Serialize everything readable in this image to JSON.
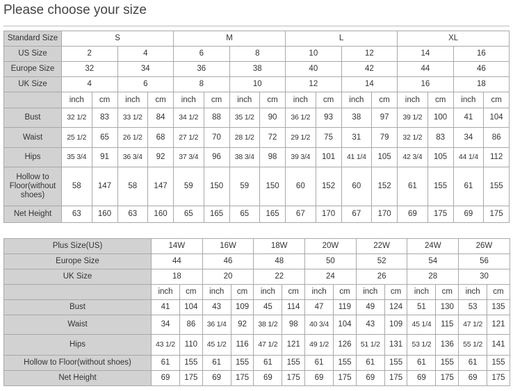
{
  "title": "Please choose your size",
  "standard_table": {
    "header": {
      "label": "Standard Size",
      "groups": [
        "S",
        "M",
        "L",
        "XL"
      ]
    },
    "size_rows": [
      {
        "label": "US Size",
        "values": [
          "2",
          "4",
          "6",
          "8",
          "10",
          "12",
          "14",
          "16"
        ]
      },
      {
        "label": "Europe Size",
        "values": [
          "32",
          "34",
          "36",
          "38",
          "40",
          "42",
          "44",
          "46"
        ]
      },
      {
        "label": "UK Size",
        "values": [
          "4",
          "6",
          "8",
          "10",
          "12",
          "14",
          "16",
          "18"
        ]
      }
    ],
    "units": [
      "inch",
      "cm"
    ],
    "measure_rows": [
      {
        "label": "Bust",
        "values": [
          "32 1/2",
          "83",
          "33 1/2",
          "84",
          "34 1/2",
          "88",
          "35 1/2",
          "90",
          "36 1/2",
          "93",
          "38",
          "97",
          "39 1/2",
          "100",
          "41",
          "104"
        ]
      },
      {
        "label": "Waist",
        "values": [
          "25 1/2",
          "65",
          "26 1/2",
          "68",
          "27 1/2",
          "70",
          "28 1/2",
          "72",
          "29 1/2",
          "75",
          "31",
          "79",
          "32 1/2",
          "83",
          "34",
          "86"
        ]
      },
      {
        "label": "Hips",
        "values": [
          "35 3/4",
          "91",
          "36 3/4",
          "92",
          "37 3/4",
          "96",
          "38 3/4",
          "98",
          "39 3/4",
          "101",
          "41 1/4",
          "105",
          "42 3/4",
          "105",
          "44 1/4",
          "112"
        ]
      },
      {
        "label": "Hollow to Floor(without shoes)",
        "values": [
          "58",
          "147",
          "58",
          "147",
          "59",
          "150",
          "59",
          "150",
          "60",
          "152",
          "60",
          "152",
          "61",
          "155",
          "61",
          "155"
        ]
      },
      {
        "label": "Net Height",
        "values": [
          "63",
          "160",
          "63",
          "160",
          "65",
          "165",
          "65",
          "165",
          "67",
          "170",
          "67",
          "170",
          "69",
          "175",
          "69",
          "175"
        ]
      }
    ]
  },
  "plus_table": {
    "size_rows": [
      {
        "label": "Plus Size(US)",
        "values": [
          "14W",
          "16W",
          "18W",
          "20W",
          "22W",
          "24W",
          "26W"
        ]
      },
      {
        "label": "Europe Size",
        "values": [
          "44",
          "46",
          "48",
          "50",
          "52",
          "54",
          "56"
        ]
      },
      {
        "label": "UK Size",
        "values": [
          "18",
          "20",
          "22",
          "24",
          "26",
          "28",
          "30"
        ]
      }
    ],
    "units": [
      "inch",
      "cm"
    ],
    "measure_rows": [
      {
        "label": "Bust",
        "values": [
          "41",
          "104",
          "43",
          "109",
          "45",
          "114",
          "47",
          "119",
          "49",
          "124",
          "51",
          "130",
          "53",
          "135"
        ]
      },
      {
        "label": "Waist",
        "values": [
          "34",
          "86",
          "36 1/4",
          "92",
          "38 1/2",
          "98",
          "40 3/4",
          "104",
          "43",
          "109",
          "45 1/4",
          "115",
          "47 1/2",
          "121"
        ]
      },
      {
        "label": "Hips",
        "values": [
          "43 1/2",
          "110",
          "45 1/2",
          "116",
          "47 1/2",
          "121",
          "49 1/2",
          "126",
          "51 1/2",
          "131",
          "53 1/2",
          "136",
          "55 1/2",
          "141"
        ]
      },
      {
        "label": "Hollow to Floor(without shoes)",
        "values": [
          "61",
          "155",
          "61",
          "155",
          "61",
          "155",
          "61",
          "155",
          "61",
          "155",
          "61",
          "155",
          "61",
          "155"
        ]
      },
      {
        "label": "Net Height",
        "values": [
          "69",
          "175",
          "69",
          "175",
          "69",
          "175",
          "69",
          "175",
          "69",
          "175",
          "69",
          "175",
          "69",
          "175"
        ]
      }
    ]
  }
}
